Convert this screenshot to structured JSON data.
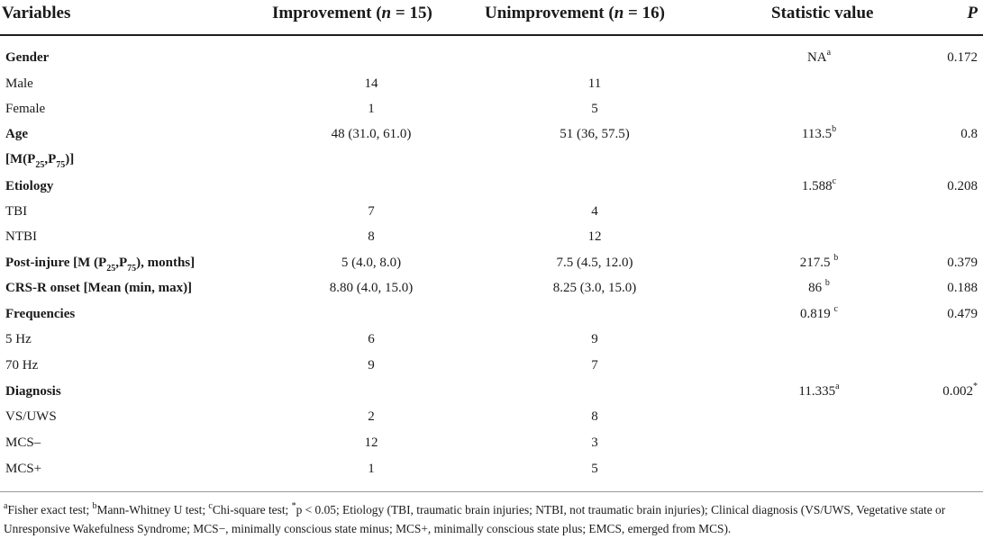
{
  "header": {
    "variables": "Variables",
    "improvement_label": "Improvement (",
    "improvement_n": "n",
    "improvement_value": " = 15)",
    "unimprovement_label": "Unimprovement (",
    "unimprovement_n": "n",
    "unimprovement_value": " = 16)",
    "statistic": "Statistic value",
    "p": "P"
  },
  "rows": {
    "gender": {
      "label": "Gender",
      "stat": "NA",
      "stat_sup": "a",
      "p": "0.172"
    },
    "male": {
      "label": "Male",
      "improvement": "14",
      "unimprovement": "11"
    },
    "female": {
      "label": "Female",
      "improvement": "1",
      "unimprovement": "5"
    },
    "age": {
      "label": "Age",
      "improvement": "48 (31.0, 61.0)",
      "unimprovement": "51 (36, 57.5)",
      "stat": "113.5",
      "stat_sup": "b",
      "p": "0.8"
    },
    "age_sub": {
      "pre": "[M(P",
      "s1": "25",
      "mid": ",P",
      "s2": "75",
      "post": ")]"
    },
    "etiology": {
      "label": "Etiology",
      "stat": "1.588",
      "stat_sup": "c",
      "p": "0.208"
    },
    "tbi": {
      "label": "TBI",
      "improvement": "7",
      "unimprovement": "4"
    },
    "ntbi": {
      "label": "NTBI",
      "improvement": "8",
      "unimprovement": "12"
    },
    "postinjury": {
      "pre": "Post-injure [M (P",
      "s1": "25",
      "mid": ",P",
      "s2": "75",
      "post": "), months]",
      "improvement": "5 (4.0, 8.0)",
      "unimprovement": "7.5 (4.5, 12.0)",
      "stat": "217.5 ",
      "stat_sup": "b",
      "p": "0.379"
    },
    "crsr": {
      "label": "CRS-R onset [Mean (min, max)]",
      "improvement": "8.80 (4.0, 15.0)",
      "unimprovement": "8.25 (3.0, 15.0)",
      "stat": "86 ",
      "stat_sup": "b",
      "p": "0.188"
    },
    "frequencies": {
      "label": "Frequencies",
      "stat": "0.819 ",
      "stat_sup": "c",
      "p": "0.479"
    },
    "hz5": {
      "label": "5 Hz",
      "improvement": "6",
      "unimprovement": "9"
    },
    "hz70": {
      "label": "70 Hz",
      "improvement": "9",
      "unimprovement": "7"
    },
    "diagnosis": {
      "label": "Diagnosis",
      "stat": "11.335",
      "stat_sup": "a",
      "p": "0.002",
      "p_sup": "*"
    },
    "vsuws": {
      "label": "VS/UWS",
      "improvement": "2",
      "unimprovement": "8"
    },
    "mcsminus": {
      "label": "MCS–",
      "improvement": "12",
      "unimprovement": "3"
    },
    "mcsplus": {
      "label": "MCS+",
      "improvement": "1",
      "unimprovement": "5"
    }
  },
  "footnote": {
    "a_mark": "a",
    "a_text": "Fisher exact test; ",
    "b_mark": "b",
    "b_text": "Mann-Whitney U test; ",
    "c_mark": "c",
    "c_text": "Chi-square test; ",
    "star_mark": "*",
    "rest": "p < 0.05; Etiology (TBI, traumatic brain injuries; NTBI, not traumatic brain injuries); Clinical diagnosis (VS/UWS, Vegetative state or Unresponsive Wakefulness Syndrome; MCS−, minimally conscious state minus; MCS+, minimally conscious state plus; EMCS, emerged from MCS)."
  }
}
